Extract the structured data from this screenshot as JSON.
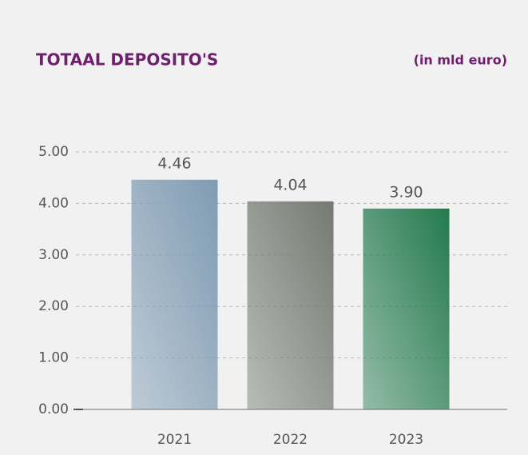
{
  "chart_data": {
    "type": "bar",
    "title": "TOTAAL DEPOSITO'S",
    "subtitle": "(in mld euro)",
    "categories": [
      "2021",
      "2022",
      "2023"
    ],
    "values": [
      4.46,
      4.04,
      3.9
    ],
    "value_labels": [
      "4.46",
      "4.04",
      "3.90"
    ],
    "colors": [
      "#7f9bb3",
      "#747a72",
      "#237a4e"
    ],
    "ylim": [
      0,
      5
    ],
    "yticks": [
      {
        "value": 0,
        "label": "0.00"
      },
      {
        "value": 1,
        "label": "1.00"
      },
      {
        "value": 2,
        "label": "2.00"
      },
      {
        "value": 3,
        "label": "3.00"
      },
      {
        "value": 4,
        "label": "4.00"
      },
      {
        "value": 5,
        "label": "5.00"
      }
    ],
    "grid": true
  }
}
